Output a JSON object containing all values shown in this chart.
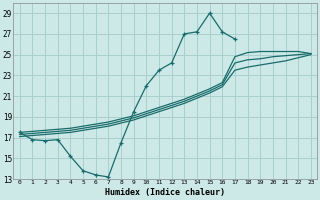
{
  "xlabel": "Humidex (Indice chaleur)",
  "bg_color": "#cce9e7",
  "grid_color": "#a8d0ce",
  "line_color": "#1a6b6b",
  "x_vals": [
    0,
    1,
    2,
    3,
    4,
    5,
    6,
    7,
    8,
    9,
    10,
    11,
    12,
    13,
    14,
    15,
    16,
    17,
    18,
    19,
    20,
    21,
    22,
    23
  ],
  "curve_y": [
    17.5,
    16.8,
    16.7,
    16.8,
    15.2,
    13.8,
    13.4,
    13.2,
    16.5,
    19.5,
    22.0,
    23.5,
    24.2,
    27.0,
    27.2,
    29.0,
    27.2,
    26.5,
    null,
    null,
    null,
    null,
    null,
    null
  ],
  "trend1_x": [
    0,
    1,
    2,
    3,
    4,
    5,
    6,
    7,
    8,
    9,
    10,
    11,
    12,
    13,
    14,
    15,
    16,
    17,
    18,
    19,
    20,
    21,
    22,
    23
  ],
  "trend1_y": [
    17.5,
    17.6,
    17.7,
    17.8,
    17.9,
    18.1,
    18.3,
    18.5,
    18.8,
    19.1,
    19.5,
    19.9,
    20.3,
    20.7,
    21.2,
    21.7,
    22.3,
    24.8,
    25.2,
    25.3,
    25.3,
    25.3,
    25.3,
    25.1
  ],
  "trend2_x": [
    0,
    1,
    2,
    3,
    4,
    5,
    6,
    7,
    8,
    9,
    10,
    11,
    12,
    13,
    14,
    15,
    16,
    17,
    18,
    19,
    20,
    21,
    22,
    23
  ],
  "trend2_y": [
    17.3,
    17.4,
    17.5,
    17.6,
    17.7,
    17.9,
    18.1,
    18.3,
    18.6,
    18.9,
    19.3,
    19.7,
    20.1,
    20.5,
    21.0,
    21.5,
    22.1,
    24.2,
    24.5,
    24.6,
    24.8,
    24.9,
    25.0,
    25.1
  ],
  "trend3_x": [
    0,
    1,
    2,
    3,
    4,
    5,
    6,
    7,
    8,
    9,
    10,
    11,
    12,
    13,
    14,
    15,
    16,
    17,
    18,
    19,
    20,
    21,
    22,
    23
  ],
  "trend3_y": [
    17.1,
    17.2,
    17.3,
    17.4,
    17.5,
    17.7,
    17.9,
    18.1,
    18.4,
    18.7,
    19.1,
    19.5,
    19.9,
    20.3,
    20.8,
    21.3,
    21.9,
    23.5,
    23.8,
    24.0,
    24.2,
    24.4,
    24.7,
    25.0
  ],
  "ylim": [
    13,
    30
  ],
  "yticks": [
    13,
    15,
    17,
    19,
    21,
    23,
    25,
    27,
    29
  ],
  "xlim_min": -0.5,
  "xlim_max": 23.5,
  "xticks": [
    0,
    1,
    2,
    3,
    4,
    5,
    6,
    7,
    8,
    9,
    10,
    11,
    12,
    13,
    14,
    15,
    16,
    17,
    18,
    19,
    20,
    21,
    22,
    23
  ]
}
